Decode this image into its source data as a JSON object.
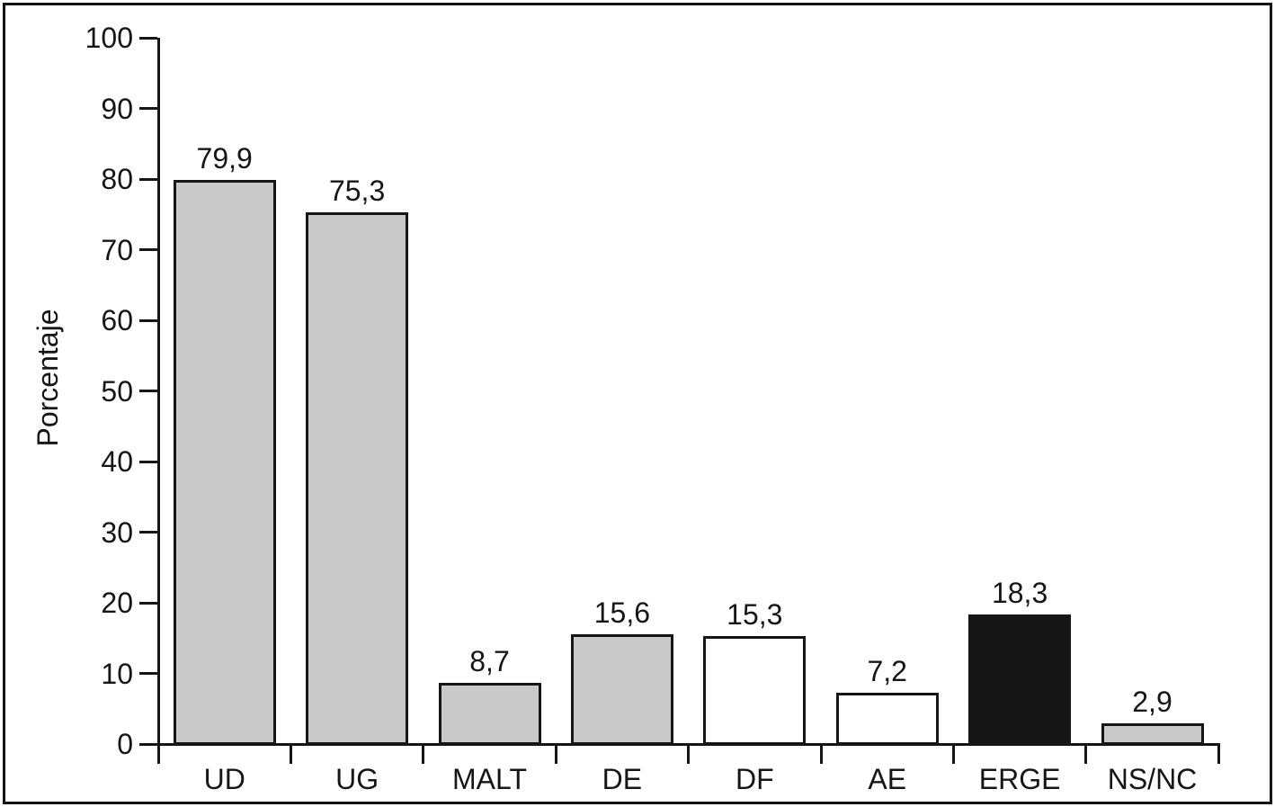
{
  "chart_data": {
    "type": "bar",
    "title": "",
    "ylabel": "Porcentaje",
    "xlabel": "",
    "ylim": [
      0,
      100
    ],
    "yticks": [
      0,
      10,
      20,
      30,
      40,
      50,
      60,
      70,
      80,
      90,
      100
    ],
    "ytick_labels": [
      "0",
      "10",
      "20",
      "30",
      "40",
      "50",
      "60",
      "70",
      "80",
      "90",
      "100"
    ],
    "categories": [
      "UD",
      "UG",
      "MALT",
      "DE",
      "DF",
      "AE",
      "ERGE",
      "NS/NC"
    ],
    "values": [
      79.9,
      75.3,
      8.7,
      15.6,
      15.3,
      7.2,
      18.3,
      2.9
    ],
    "value_labels": [
      "79,9",
      "75,3",
      "8,7",
      "15,6",
      "15,3",
      "7,2",
      "18,3",
      "2,9"
    ],
    "bar_fill_colors": [
      "#c9c9c9",
      "#c9c9c9",
      "#c9c9c9",
      "#c9c9c9",
      "#ffffff",
      "#ffffff",
      "#161616",
      "#c9c9c9"
    ],
    "bar_border_color": "#161616",
    "axis_color": "#161616",
    "text_color": "#161616",
    "grid": false,
    "legend": null,
    "decimal_separator": ","
  }
}
